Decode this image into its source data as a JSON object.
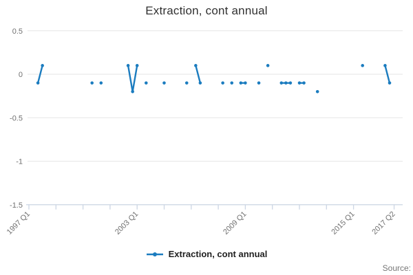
{
  "title": "Extraction, cont annual",
  "legend": {
    "label": "Extraction, cont annual"
  },
  "source_label": "Source:",
  "colors": {
    "series": "#1B7CBF",
    "grid": "#e6e6e6",
    "axis": "#ccd6e4",
    "tick_text": "#707070"
  },
  "chart_data": {
    "type": "line",
    "title": "Extraction, cont annual",
    "series_name": "Extraction, cont annual",
    "x_axis_start": "1997 Q1",
    "x_labeled_ticks": [
      "1997 Q1",
      "2003 Q1",
      "2009 Q1",
      "2015 Q1",
      "2017 Q2"
    ],
    "x_tick_interval_quarters": 6,
    "ylim": [
      -1.5,
      0.5
    ],
    "y_ticks": [
      {
        "v": 0.5,
        "label": "0.5"
      },
      {
        "v": 0,
        "label": "0"
      },
      {
        "v": -0.5,
        "label": "-0.5"
      },
      {
        "v": -1,
        "label": "-1"
      },
      {
        "v": -1.5,
        "label": "-1.5"
      }
    ],
    "grid": true,
    "legend_position": "bottom",
    "connect_rule": "only consecutive quarters are joined by line segments",
    "points": [
      {
        "x": "1997 Q3",
        "y": -0.1
      },
      {
        "x": "1997 Q4",
        "y": 0.1
      },
      {
        "x": "2000 Q3",
        "y": -0.1
      },
      {
        "x": "2001 Q1",
        "y": -0.1
      },
      {
        "x": "2002 Q3",
        "y": 0.1
      },
      {
        "x": "2002 Q4",
        "y": -0.2
      },
      {
        "x": "2003 Q1",
        "y": 0.1
      },
      {
        "x": "2003 Q3",
        "y": -0.1
      },
      {
        "x": "2004 Q3",
        "y": -0.1
      },
      {
        "x": "2005 Q4",
        "y": -0.1
      },
      {
        "x": "2006 Q2",
        "y": 0.1
      },
      {
        "x": "2006 Q3",
        "y": -0.1
      },
      {
        "x": "2007 Q4",
        "y": -0.1
      },
      {
        "x": "2008 Q2",
        "y": -0.1
      },
      {
        "x": "2008 Q4",
        "y": -0.1
      },
      {
        "x": "2009 Q1",
        "y": -0.1
      },
      {
        "x": "2009 Q4",
        "y": -0.1
      },
      {
        "x": "2010 Q2",
        "y": 0.1
      },
      {
        "x": "2011 Q1",
        "y": -0.1
      },
      {
        "x": "2011 Q2",
        "y": -0.1
      },
      {
        "x": "2011 Q3",
        "y": -0.1
      },
      {
        "x": "2012 Q1",
        "y": -0.1
      },
      {
        "x": "2012 Q2",
        "y": -0.1
      },
      {
        "x": "2013 Q1",
        "y": -0.2
      },
      {
        "x": "2015 Q3",
        "y": 0.1
      },
      {
        "x": "2016 Q4",
        "y": 0.1
      },
      {
        "x": "2017 Q1",
        "y": -0.1
      }
    ]
  }
}
